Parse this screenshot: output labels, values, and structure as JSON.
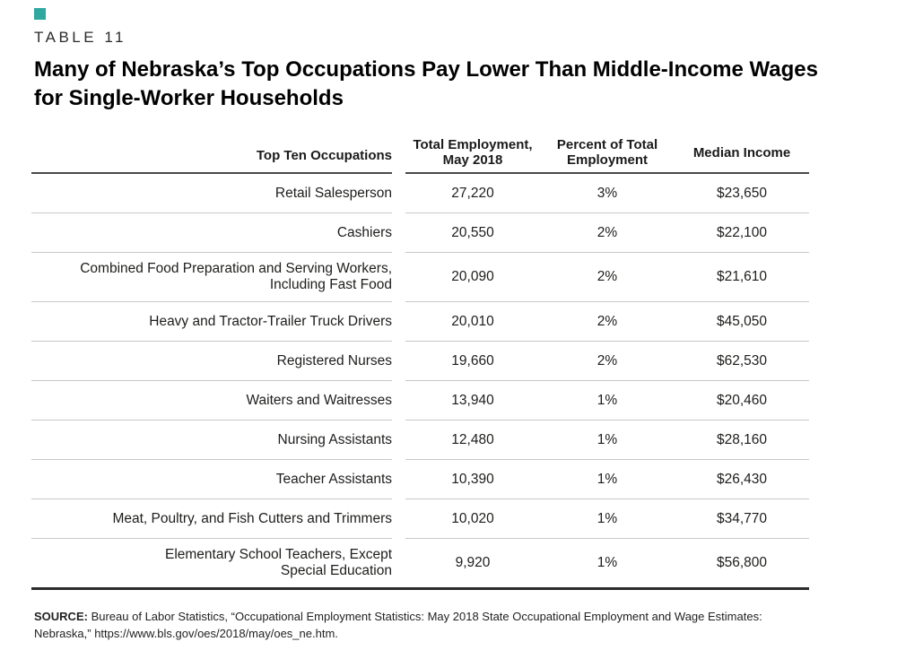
{
  "page": {
    "table_label": "TABLE 11",
    "title": "Many of Nebraska’s Top Occupations Pay Lower Than Middle-Income Wages\nfor Single-Worker Households",
    "accent_color": "#2FA8A0",
    "header_rule_color": "#4a4a4a",
    "row_rule_color": "#c9c9c9",
    "bottom_rule_color": "#2b2b2b"
  },
  "table": {
    "headers": {
      "occupations": "Top Ten Occupations",
      "employment": "Total Employment,\nMay 2018",
      "percent": "Percent of Total\nEmployment",
      "income": "Median Income"
    },
    "rows": [
      {
        "occupation": "Retail Salesperson",
        "employment": "27,220",
        "percent": "3%",
        "income": "$23,650"
      },
      {
        "occupation": "Cashiers",
        "employment": "20,550",
        "percent": "2%",
        "income": "$22,100"
      },
      {
        "occupation": "Combined Food Preparation and Serving Workers,\nIncluding Fast Food",
        "employment": "20,090",
        "percent": "2%",
        "income": "$21,610"
      },
      {
        "occupation": "Heavy and Tractor-Trailer Truck Drivers",
        "employment": "20,010",
        "percent": "2%",
        "income": "$45,050"
      },
      {
        "occupation": "Registered Nurses",
        "employment": "19,660",
        "percent": "2%",
        "income": "$62,530"
      },
      {
        "occupation": "Waiters and Waitresses",
        "employment": "13,940",
        "percent": "1%",
        "income": "$20,460"
      },
      {
        "occupation": "Nursing Assistants",
        "employment": "12,480",
        "percent": "1%",
        "income": "$28,160"
      },
      {
        "occupation": "Teacher Assistants",
        "employment": "10,390",
        "percent": "1%",
        "income": "$26,430"
      },
      {
        "occupation": "Meat, Poultry, and Fish Cutters and Trimmers",
        "employment": "10,020",
        "percent": "1%",
        "income": "$34,770"
      },
      {
        "occupation": "Elementary School Teachers, Except\nSpecial Education",
        "employment": "9,920",
        "percent": "1%",
        "income": "$56,800"
      }
    ]
  },
  "source": {
    "label": "SOURCE:",
    "text": "Bureau of Labor Statistics, “Occupational Employment Statistics: May 2018 State Occupational Employment and Wage Estimates:\nNebraska,” https://www.bls.gov/oes/2018/may/oes_ne.htm."
  },
  "chart_data": {
    "type": "table",
    "title": "Many of Nebraska’s Top Occupations Pay Lower Than Middle-Income Wages for Single-Worker Households",
    "table_number": "TABLE 11",
    "columns": [
      "Top Ten Occupations",
      "Total Employment, May 2018",
      "Percent of Total Employment",
      "Median Income"
    ],
    "rows": [
      [
        "Retail Salesperson",
        27220,
        "3%",
        23650
      ],
      [
        "Cashiers",
        20550,
        "2%",
        22100
      ],
      [
        "Combined Food Preparation and Serving Workers, Including Fast Food",
        20090,
        "2%",
        21610
      ],
      [
        "Heavy and Tractor-Trailer Truck Drivers",
        20010,
        "2%",
        45050
      ],
      [
        "Registered Nurses",
        19660,
        "2%",
        62530
      ],
      [
        "Waiters and Waitresses",
        13940,
        "1%",
        20460
      ],
      [
        "Nursing Assistants",
        12480,
        "1%",
        28160
      ],
      [
        "Teacher Assistants",
        10390,
        "1%",
        26430
      ],
      [
        "Meat, Poultry, and Fish Cutters and Trimmers",
        10020,
        "1%",
        34770
      ],
      [
        "Elementary School Teachers, Except Special Education",
        9920,
        "1%",
        56800
      ]
    ],
    "source": "Bureau of Labor Statistics, “Occupational Employment Statistics: May 2018 State Occupational Employment and Wage Estimates: Nebraska,” https://www.bls.gov/oes/2018/may/oes_ne.htm."
  }
}
